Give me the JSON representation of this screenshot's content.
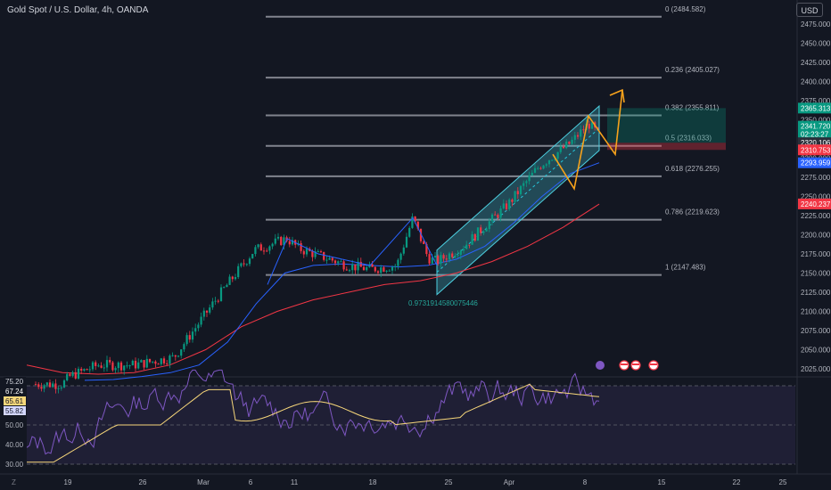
{
  "header": {
    "title": "Gold Spot / U.S. Dollar, 4h, OANDA",
    "currency": "USD",
    "z_label": "Z"
  },
  "price_axis": {
    "ticks": [
      "2475.000",
      "2450.000",
      "2425.000",
      "2400.000",
      "2375.000",
      "2350.000",
      "2325.000",
      "2300.000",
      "2275.000",
      "2250.000",
      "2225.000",
      "2200.000",
      "2175.000",
      "2150.000",
      "2125.000",
      "2100.000",
      "2075.000",
      "2050.000",
      "2025.000"
    ],
    "labels": [
      {
        "text": "2365.313",
        "value": 2365.313,
        "color": "#089981"
      },
      {
        "text": "2341.720",
        "value": 2341.72,
        "color": "#089981"
      },
      {
        "text": "02:23:27",
        "value": 2331.5,
        "color": "#089981"
      },
      {
        "text": "2320.106",
        "value": 2320.106,
        "color": "#2a2e39"
      },
      {
        "text": "2310.753",
        "value": 2310.753,
        "color": "#f23645"
      },
      {
        "text": "2293.959",
        "value": 2293.959,
        "color": "#2962ff"
      },
      {
        "text": "2240.237",
        "value": 2240.237,
        "color": "#f23645"
      }
    ]
  },
  "rsi_axis": {
    "ticks": [
      "50.00",
      "40.00",
      "30.00"
    ],
    "labels": [
      {
        "text": "75.20",
        "color": "#ffffff",
        "value": 75.2
      },
      {
        "text": "67.24",
        "color": "#131722",
        "value": 67.24
      },
      {
        "text": "65.61",
        "color": "#f7d77a",
        "value": 65.61
      },
      {
        "text": "55.82",
        "color": "#d4d7ff",
        "value": 55.82
      }
    ]
  },
  "time_axis": [
    "19",
    "26",
    "Mar",
    "6",
    "11",
    "18",
    "25",
    "Apr",
    "8",
    "15",
    "22",
    "25"
  ],
  "fib_levels": [
    {
      "ratio": "0",
      "label": "0 (2484.582)",
      "value": 2484.582
    },
    {
      "ratio": "0.236",
      "label": "0.236 (2405.027)",
      "value": 2405.027
    },
    {
      "ratio": "0.382",
      "label": "0.382 (2355.811)",
      "value": 2355.811
    },
    {
      "ratio": "0.5",
      "label": "0.5 (2316.033)",
      "value": 2316.033
    },
    {
      "ratio": "0.618",
      "label": "0.618 (2276.255)",
      "value": 2276.255
    },
    {
      "ratio": "0.786",
      "label": "0.786 (2219.623)",
      "value": 2219.623
    },
    {
      "ratio": "1",
      "label": "1 (2147.483)",
      "value": 2147.483
    }
  ],
  "annotations": {
    "channel_label": "0.9731914580075446"
  },
  "colors": {
    "bull": "#089981",
    "bear": "#f23645",
    "ma_fast": "#2962ff",
    "ma_slow": "#f23645",
    "rsi": "#7e57c2",
    "rsi_ma": "#f7d77a",
    "fib": "#9598a1",
    "projection": "#f7a21b",
    "channel": "#4dd0e1"
  },
  "chart_data": {
    "type": "candlestick",
    "symbol": "Gold Spot / U.S. Dollar",
    "timeframe": "4h",
    "ylim": [
      2010,
      2495
    ],
    "close_path": [
      {
        "x": "Feb 15",
        "y": 2005
      },
      {
        "x": "Feb 19",
        "y": 2015
      },
      {
        "x": "Feb 22",
        "y": 2030
      },
      {
        "x": "Feb 26",
        "y": 2030
      },
      {
        "x": "Feb 29",
        "y": 2040
      },
      {
        "x": "Mar 1",
        "y": 2080
      },
      {
        "x": "Mar 4",
        "y": 2120
      },
      {
        "x": "Mar 6",
        "y": 2150
      },
      {
        "x": "Mar 8",
        "y": 2180
      },
      {
        "x": "Mar 8",
        "y": 2195
      },
      {
        "x": "Mar 11",
        "y": 2182
      },
      {
        "x": "Mar 13",
        "y": 2172
      },
      {
        "x": "Mar 15",
        "y": 2160
      },
      {
        "x": "Mar 18",
        "y": 2155
      },
      {
        "x": "Mar 20",
        "y": 2160
      },
      {
        "x": "Mar 21",
        "y": 2222
      },
      {
        "x": "Mar 22",
        "y": 2170
      },
      {
        "x": "Mar 25",
        "y": 2165
      },
      {
        "x": "Mar 27",
        "y": 2185
      },
      {
        "x": "Apr 1",
        "y": 2240
      },
      {
        "x": "Apr 3",
        "y": 2290
      },
      {
        "x": "Apr 5",
        "y": 2320
      },
      {
        "x": "Apr 8",
        "y": 2345
      },
      {
        "x": "Apr 9",
        "y": 2330
      }
    ],
    "ma_fast": [
      2010,
      2011,
      2015,
      2020,
      2030,
      2060,
      2110,
      2150,
      2160,
      2162,
      2160,
      2158,
      2160,
      2168,
      2185,
      2215,
      2250,
      2280,
      2294
    ],
    "ma_slow": [
      2030,
      2020,
      2018,
      2020,
      2030,
      2050,
      2080,
      2100,
      2115,
      2125,
      2135,
      2140,
      2150,
      2165,
      2185,
      2210,
      2240
    ],
    "rsi": {
      "value": 67.24,
      "ma": 65.61,
      "upper": 75.2,
      "lower": 55.82,
      "levels": [
        70,
        50,
        30
      ]
    }
  }
}
